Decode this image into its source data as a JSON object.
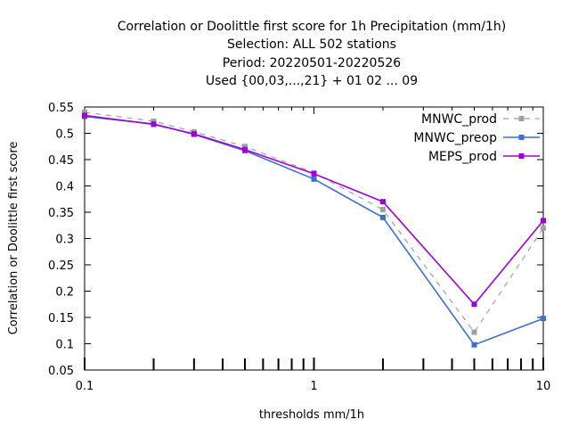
{
  "title_lines": [
    "Correlation or Doolittle first score  for 1h Precipitation (mm/1h)",
    "Selection: ALL    502 stations",
    "Period: 20220501-20220526",
    "Used {00,03,...,21} + 01 02 ... 09"
  ],
  "chart_data": {
    "type": "line",
    "xscale": "log",
    "xlabel": "thresholds mm/1h",
    "ylabel": "Correlation or Doolittle first score",
    "xlim": [
      0.1,
      10
    ],
    "ylim": [
      0.05,
      0.55
    ],
    "x": [
      0.1,
      0.2,
      0.3,
      0.5,
      1,
      2,
      5,
      10
    ],
    "x_tick_labels": [
      {
        "value": 0.1,
        "label": "0.1"
      },
      {
        "value": 1,
        "label": "1"
      },
      {
        "value": 10,
        "label": "10"
      }
    ],
    "y_ticks": [
      0.05,
      0.1,
      0.15,
      0.2,
      0.25,
      0.3,
      0.35,
      0.4,
      0.45,
      0.5,
      0.55
    ],
    "y_tick_labels": [
      "0.05",
      "0.1",
      "0.15",
      "0.2",
      "0.25",
      "0.3",
      "0.35",
      "0.4",
      "0.45",
      "0.5",
      "0.55"
    ],
    "grid": false,
    "legend_position": "top-right",
    "series": [
      {
        "name": "MNWC_prod",
        "color": "#a0a0a0",
        "dashed": true,
        "values": [
          0.54,
          0.523,
          0.503,
          0.475,
          0.425,
          0.355,
          0.122,
          0.32
        ]
      },
      {
        "name": "MNWC_preop",
        "color": "#3c6fd2",
        "dashed": false,
        "values": [
          0.532,
          0.518,
          0.498,
          0.467,
          0.413,
          0.34,
          0.098,
          0.148
        ]
      },
      {
        "name": "MEPS_prod",
        "color": "#a000d8",
        "dashed": false,
        "values": [
          0.534,
          0.517,
          0.499,
          0.469,
          0.423,
          0.37,
          0.175,
          0.334
        ]
      }
    ]
  }
}
